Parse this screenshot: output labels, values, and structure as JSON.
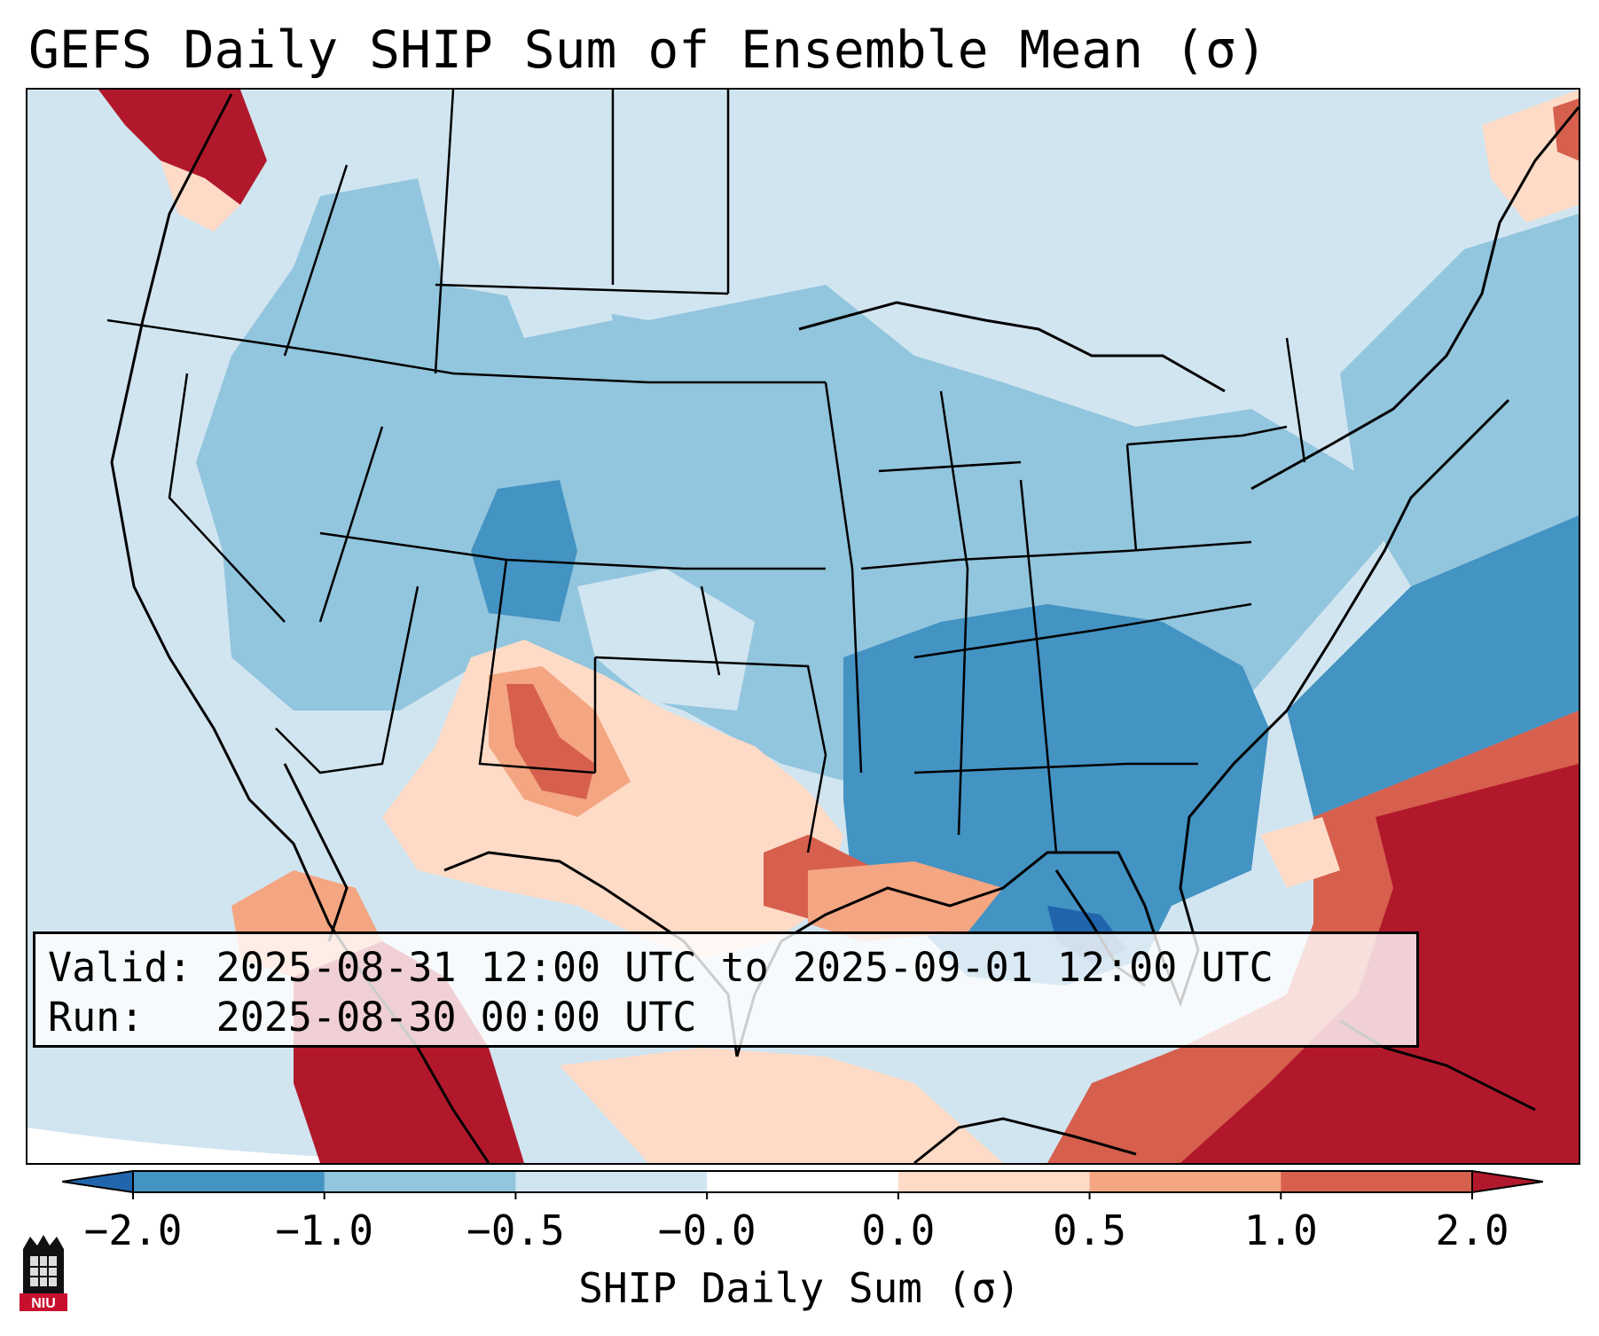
{
  "title": "GEFS Daily SHIP Sum of Ensemble Mean (σ)",
  "info": {
    "valid_label": "Valid:",
    "valid_value": "2025-08-31 12:00 UTC to 2025-09-01 12:00 UTC",
    "run_label": "Run:",
    "run_value": "2025-08-30 00:00 UTC"
  },
  "colorbar": {
    "label": "SHIP Daily Sum (σ)",
    "ticks": [
      "−2.0",
      "−1.0",
      "−0.5",
      "−0.0",
      "0.0",
      "0.5",
      "1.0",
      "2.0"
    ],
    "colors": [
      "#4393c3",
      "#92c5de",
      "#d1e5f0",
      "#ffffff",
      "#fddbc7",
      "#f4a582",
      "#d6604d"
    ],
    "under_color": "#2166ac",
    "over_color": "#b2182b"
  },
  "logo": {
    "text": "NIU"
  }
}
